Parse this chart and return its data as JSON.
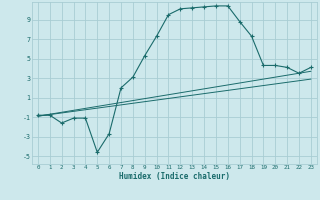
{
  "xlabel": "Humidex (Indice chaleur)",
  "bg_color": "#cde8ec",
  "grid_color": "#a8cdd4",
  "line_color": "#1a6b6b",
  "xlim": [
    -0.5,
    23.5
  ],
  "ylim": [
    -5.8,
    10.8
  ],
  "xticks": [
    0,
    1,
    2,
    3,
    4,
    5,
    6,
    7,
    8,
    9,
    10,
    11,
    12,
    13,
    14,
    15,
    16,
    17,
    18,
    19,
    20,
    21,
    22,
    23
  ],
  "yticks": [
    -5,
    -3,
    -1,
    1,
    3,
    5,
    7,
    9
  ],
  "curve_x": [
    0,
    1,
    2,
    3,
    4,
    5,
    6,
    7,
    8,
    9,
    10,
    11,
    12,
    13,
    14,
    15,
    16,
    17,
    18,
    19,
    20,
    21,
    22,
    23
  ],
  "curve_y": [
    -0.8,
    -0.8,
    -1.6,
    -1.1,
    -1.1,
    -4.6,
    -2.7,
    2.0,
    3.1,
    5.3,
    7.3,
    9.5,
    10.1,
    10.2,
    10.3,
    10.4,
    10.4,
    8.8,
    7.3,
    4.3,
    4.3,
    4.1,
    3.5,
    4.1
  ],
  "line1_x": [
    0,
    23
  ],
  "line1_y": [
    -0.9,
    3.7
  ],
  "line2_x": [
    0,
    23
  ],
  "line2_y": [
    -0.9,
    2.9
  ]
}
